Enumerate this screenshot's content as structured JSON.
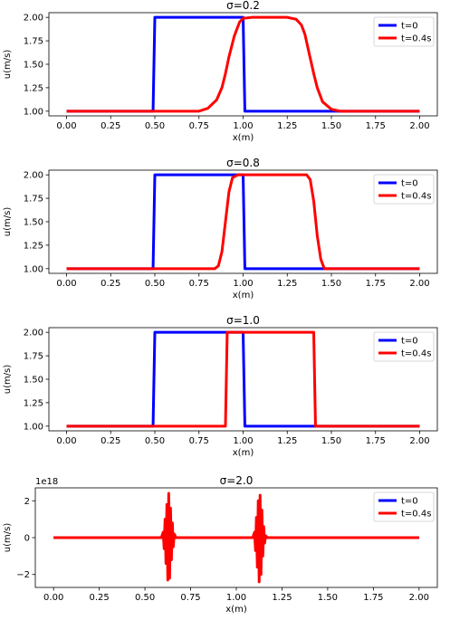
{
  "chart_data": [
    {
      "type": "line",
      "title": "σ=0.2",
      "xlabel": "x(m)",
      "ylabel": "u(m/s)",
      "xlim": [
        -0.1,
        2.1
      ],
      "ylim": [
        0.95,
        2.05
      ],
      "xticks": [
        0.0,
        0.25,
        0.5,
        0.75,
        1.0,
        1.25,
        1.5,
        1.75,
        2.0
      ],
      "xtick_labels": [
        "0.00",
        "0.25",
        "0.50",
        "0.75",
        "1.00",
        "1.25",
        "1.50",
        "1.75",
        "2.00"
      ],
      "yticks": [
        1.0,
        1.25,
        1.5,
        1.75,
        2.0
      ],
      "ytick_labels": [
        "1.00",
        "1.25",
        "1.50",
        "1.75",
        "2.00"
      ],
      "legend_position": "top-right",
      "grid": false,
      "series": [
        {
          "name": "t=0",
          "color": "#0000ff",
          "x": [
            0.0,
            0.49,
            0.5,
            1.0,
            1.01,
            2.0
          ],
          "y": [
            1.0,
            1.0,
            2.0,
            2.0,
            1.0,
            1.0
          ]
        },
        {
          "name": "t=0.4s",
          "color": "#ff0000",
          "x": [
            0.0,
            0.75,
            0.8,
            0.85,
            0.88,
            0.9,
            0.92,
            0.95,
            0.98,
            1.0,
            1.05,
            1.25,
            1.3,
            1.33,
            1.35,
            1.37,
            1.4,
            1.42,
            1.45,
            1.5,
            1.55,
            2.0
          ],
          "y": [
            1.0,
            1.0,
            1.03,
            1.12,
            1.25,
            1.4,
            1.58,
            1.8,
            1.95,
            1.99,
            2.0,
            2.0,
            1.98,
            1.92,
            1.82,
            1.65,
            1.4,
            1.25,
            1.1,
            1.02,
            1.0,
            1.0
          ]
        }
      ]
    },
    {
      "type": "line",
      "title": "σ=0.8",
      "xlabel": "x(m)",
      "ylabel": "u(m/s)",
      "xlim": [
        -0.1,
        2.1
      ],
      "ylim": [
        0.95,
        2.05
      ],
      "xticks": [
        0.0,
        0.25,
        0.5,
        0.75,
        1.0,
        1.25,
        1.5,
        1.75,
        2.0
      ],
      "xtick_labels": [
        "0.00",
        "0.25",
        "0.50",
        "0.75",
        "1.00",
        "1.25",
        "1.50",
        "1.75",
        "2.00"
      ],
      "yticks": [
        1.0,
        1.25,
        1.5,
        1.75,
        2.0
      ],
      "ytick_labels": [
        "1.00",
        "1.25",
        "1.50",
        "1.75",
        "2.00"
      ],
      "legend_position": "top-right",
      "grid": false,
      "series": [
        {
          "name": "t=0",
          "color": "#0000ff",
          "x": [
            0.0,
            0.49,
            0.5,
            1.0,
            1.01,
            2.0
          ],
          "y": [
            1.0,
            1.0,
            2.0,
            2.0,
            1.0,
            1.0
          ]
        },
        {
          "name": "t=0.4s",
          "color": "#ff0000",
          "x": [
            0.0,
            0.84,
            0.86,
            0.88,
            0.9,
            0.92,
            0.94,
            0.97,
            1.0,
            1.36,
            1.38,
            1.4,
            1.42,
            1.44,
            1.46,
            2.0
          ],
          "y": [
            1.0,
            1.0,
            1.03,
            1.18,
            1.5,
            1.82,
            1.97,
            2.0,
            2.0,
            2.0,
            1.95,
            1.72,
            1.35,
            1.1,
            1.0,
            1.0
          ]
        }
      ]
    },
    {
      "type": "line",
      "title": "σ=1.0",
      "xlabel": "x(m)",
      "ylabel": "u(m/s)",
      "xlim": [
        -0.1,
        2.1
      ],
      "ylim": [
        0.95,
        2.05
      ],
      "xticks": [
        0.0,
        0.25,
        0.5,
        0.75,
        1.0,
        1.25,
        1.5,
        1.75,
        2.0
      ],
      "xtick_labels": [
        "0.00",
        "0.25",
        "0.50",
        "0.75",
        "1.00",
        "1.25",
        "1.50",
        "1.75",
        "2.00"
      ],
      "yticks": [
        1.0,
        1.25,
        1.5,
        1.75,
        2.0
      ],
      "ytick_labels": [
        "1.00",
        "1.25",
        "1.50",
        "1.75",
        "2.00"
      ],
      "legend_position": "top-right",
      "grid": false,
      "series": [
        {
          "name": "t=0",
          "color": "#0000ff",
          "x": [
            0.0,
            0.49,
            0.5,
            1.0,
            1.01,
            2.0
          ],
          "y": [
            1.0,
            1.0,
            2.0,
            2.0,
            1.0,
            1.0
          ]
        },
        {
          "name": "t=0.4s",
          "color": "#ff0000",
          "x": [
            0.0,
            0.9,
            0.91,
            1.4,
            1.41,
            2.0
          ],
          "y": [
            1.0,
            1.0,
            2.0,
            2.0,
            1.0,
            1.0
          ]
        }
      ]
    },
    {
      "type": "line",
      "title": "σ=2.0",
      "xlabel": "x(m)",
      "ylabel": "u(m/s)",
      "offset_text": "1e18",
      "xlim": [
        -0.1,
        2.1
      ],
      "ylim": [
        -2.7,
        2.7
      ],
      "xticks": [
        0.0,
        0.25,
        0.5,
        0.75,
        1.0,
        1.25,
        1.5,
        1.75,
        2.0
      ],
      "xtick_labels": [
        "0.00",
        "0.25",
        "0.50",
        "0.75",
        "1.00",
        "1.25",
        "1.50",
        "1.75",
        "2.00"
      ],
      "yticks": [
        -2,
        0,
        2
      ],
      "ytick_labels": [
        "−2",
        "0",
        "2"
      ],
      "legend_position": "top-right",
      "grid": false,
      "series": [
        {
          "name": "t=0",
          "color": "#0000ff",
          "x": [
            0.0,
            2.0
          ],
          "y": [
            0.0,
            0.0
          ]
        },
        {
          "name": "t=0.4s",
          "color": "#ff0000",
          "x": [
            0.0,
            0.59,
            0.6,
            0.605,
            0.61,
            0.615,
            0.62,
            0.625,
            0.63,
            0.635,
            0.64,
            0.645,
            0.65,
            0.655,
            0.66,
            0.67,
            1.09,
            1.1,
            1.105,
            1.11,
            1.115,
            1.12,
            1.125,
            1.13,
            1.135,
            1.14,
            1.145,
            1.15,
            1.155,
            1.16,
            1.17,
            2.0
          ],
          "y": [
            0.0,
            0.0,
            0.3,
            -0.6,
            1.0,
            -1.4,
            1.8,
            -2.3,
            2.4,
            -2.2,
            1.6,
            -1.2,
            0.8,
            -0.5,
            0.2,
            0.0,
            0.0,
            0.3,
            -0.7,
            1.1,
            -1.6,
            2.0,
            -2.4,
            2.3,
            -2.0,
            1.5,
            -1.0,
            0.6,
            -0.3,
            0.1,
            0.0,
            0.0
          ]
        }
      ]
    }
  ]
}
